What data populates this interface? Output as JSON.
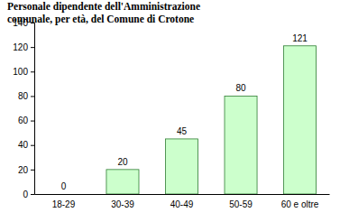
{
  "chart_data": {
    "type": "bar",
    "title": [
      "Personale dipendente  dell'Amministrazione",
      "comunale,  per età,  del Comune di Crotone"
    ],
    "categories": [
      "18-29",
      "30-39",
      "40-49",
      "50-59",
      "60 e oltre"
    ],
    "values": [
      0,
      20,
      45,
      80,
      121
    ],
    "color": "#ccffcc",
    "ylim": [
      0,
      140
    ],
    "yticks": [
      0,
      20,
      40,
      60,
      80,
      100,
      120,
      140
    ],
    "grid": false,
    "data_labels": true
  }
}
